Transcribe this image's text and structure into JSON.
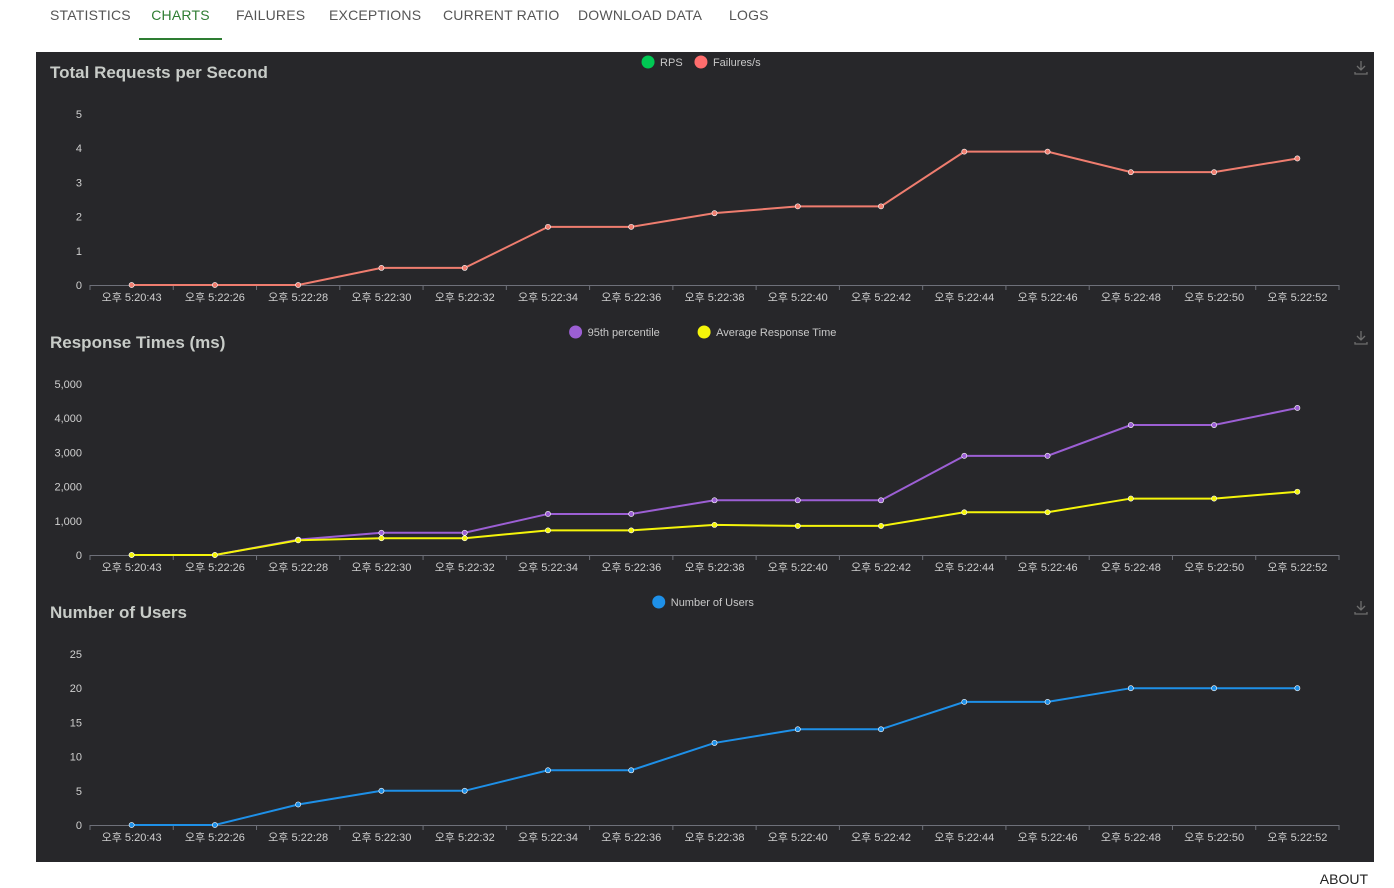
{
  "tabs": {
    "statistics": "STATISTICS",
    "charts": "CHARTS",
    "failures": "FAILURES",
    "exceptions": "EXCEPTIONS",
    "current_ratio": "CURRENT RATIO",
    "download_data": "DOWNLOAD DATA",
    "logs": "LOGS"
  },
  "footer": {
    "about": "ABOUT"
  },
  "colors": {
    "panel_bg": "#27272a",
    "active_tab": "#2e7d32"
  },
  "chart_data": [
    {
      "type": "line",
      "title": "Total Requests per Second",
      "categories": [
        "오후 5:20:43",
        "오후 5:22:26",
        "오후 5:22:28",
        "오후 5:22:30",
        "오후 5:22:32",
        "오후 5:22:34",
        "오후 5:22:36",
        "오후 5:22:38",
        "오후 5:22:40",
        "오후 5:22:42",
        "오후 5:22:44",
        "오후 5:22:46",
        "오후 5:22:48",
        "오후 5:22:50",
        "오후 5:22:52"
      ],
      "yticks": [
        "0",
        "1",
        "2",
        "3",
        "4",
        "5"
      ],
      "ylim": [
        0,
        5
      ],
      "legend": [
        {
          "name": "RPS",
          "color": "#00c853"
        },
        {
          "name": "Failures/s",
          "color": "#ff6d6d"
        }
      ],
      "series": [
        {
          "name": "Failures/s",
          "color": "#ef7d6f",
          "values": [
            0,
            0,
            0,
            0.5,
            0.5,
            1.7,
            1.7,
            2.1,
            2.3,
            2.3,
            3.9,
            3.9,
            3.3,
            3.3,
            3.7
          ]
        }
      ]
    },
    {
      "type": "line",
      "title": "Response Times (ms)",
      "categories": [
        "오후 5:20:43",
        "오후 5:22:26",
        "오후 5:22:28",
        "오후 5:22:30",
        "오후 5:22:32",
        "오후 5:22:34",
        "오후 5:22:36",
        "오후 5:22:38",
        "오후 5:22:40",
        "오후 5:22:42",
        "오후 5:22:44",
        "오후 5:22:46",
        "오후 5:22:48",
        "오후 5:22:50",
        "오후 5:22:52"
      ],
      "yticks": [
        "0",
        "1,000",
        "2,000",
        "3,000",
        "4,000",
        "5,000"
      ],
      "ylim": [
        0,
        5000
      ],
      "legend": [
        {
          "name": "95th percentile",
          "color": "#9c5fd4"
        },
        {
          "name": "Average Response Time",
          "color": "#f5f50a"
        }
      ],
      "series": [
        {
          "name": "95th percentile",
          "color": "#9c5fd4",
          "values": [
            0,
            0,
            450,
            650,
            650,
            1200,
            1200,
            1600,
            1600,
            1600,
            2900,
            2900,
            3800,
            3800,
            4300
          ]
        },
        {
          "name": "Average Response Time",
          "color": "#f5f50a",
          "values": [
            0,
            0,
            430,
            490,
            490,
            720,
            720,
            880,
            850,
            850,
            1250,
            1250,
            1650,
            1650,
            1850
          ]
        }
      ]
    },
    {
      "type": "line",
      "title": "Number of Users",
      "categories": [
        "오후 5:20:43",
        "오후 5:22:26",
        "오후 5:22:28",
        "오후 5:22:30",
        "오후 5:22:32",
        "오후 5:22:34",
        "오후 5:22:36",
        "오후 5:22:38",
        "오후 5:22:40",
        "오후 5:22:42",
        "오후 5:22:44",
        "오후 5:22:46",
        "오후 5:22:48",
        "오후 5:22:50",
        "오후 5:22:52"
      ],
      "yticks": [
        "0",
        "5",
        "10",
        "15",
        "20",
        "25"
      ],
      "ylim": [
        0,
        25
      ],
      "legend": [
        {
          "name": "Number of Users",
          "color": "#1e90e8"
        }
      ],
      "series": [
        {
          "name": "Number of Users",
          "color": "#1e90e8",
          "values": [
            0,
            0,
            3,
            5,
            5,
            8,
            8,
            12,
            14,
            14,
            18,
            18,
            20,
            20,
            20
          ]
        }
      ]
    }
  ]
}
